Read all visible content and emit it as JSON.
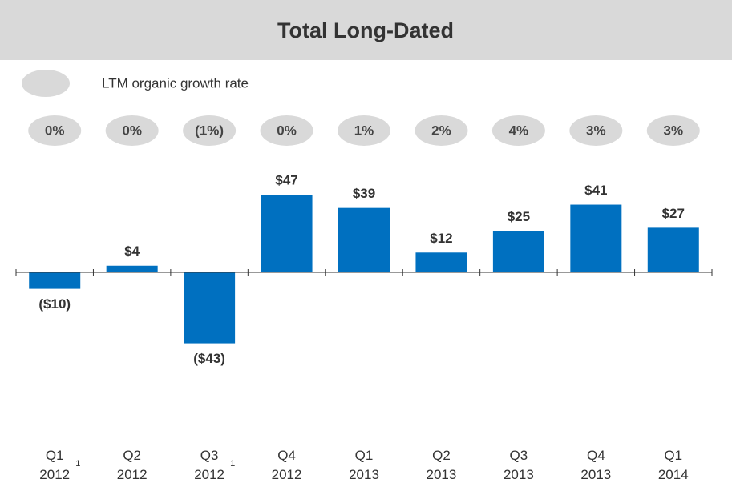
{
  "chart_data": {
    "type": "bar",
    "title": "Total Long-Dated",
    "legend_label": "LTM organic growth rate",
    "categories": [
      "Q1\n2012",
      "Q2\n2012",
      "Q3\n2012",
      "Q4\n2012",
      "Q1\n2013",
      "Q2\n2013",
      "Q3\n2013",
      "Q4\n2013",
      "Q1\n2014"
    ],
    "category_footnotes": [
      "1",
      null,
      "1",
      null,
      null,
      null,
      null,
      null,
      null
    ],
    "values": [
      -10,
      4,
      -43,
      47,
      39,
      12,
      25,
      41,
      27
    ],
    "value_labels": [
      "($10)",
      "$4",
      "($43)",
      "$47",
      "$39",
      "$12",
      "$25",
      "$41",
      "$27"
    ],
    "growth_rates": [
      0,
      0,
      -1,
      0,
      1,
      2,
      4,
      3,
      3
    ],
    "growth_rate_labels": [
      "0%",
      "0%",
      "(1%)",
      "0%",
      "1%",
      "2%",
      "4%",
      "3%",
      "3%"
    ],
    "color": "#0070c0",
    "ylim": [
      -50,
      50
    ]
  }
}
